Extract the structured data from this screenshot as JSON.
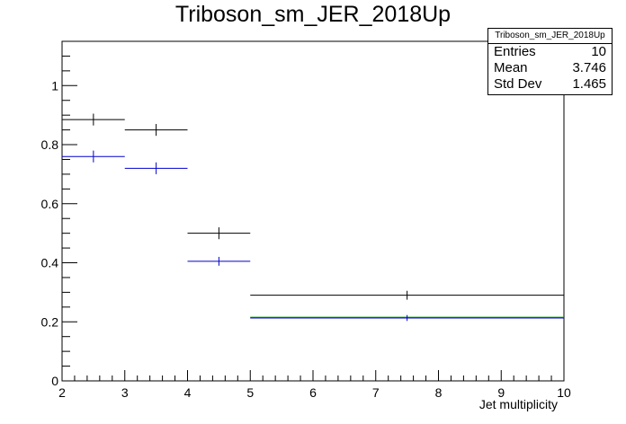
{
  "chart_data": {
    "type": "histogram",
    "title": "Triboson_sm_JER_2018Up",
    "xlabel": "Jet multiplicity",
    "ylabel": "",
    "xlim": [
      2,
      10
    ],
    "ylim": [
      0,
      1.15
    ],
    "xticks": [
      "2",
      "3",
      "4",
      "5",
      "6",
      "7",
      "8",
      "9",
      "10"
    ],
    "yticks": [
      "0",
      "0.2",
      "0.4",
      "0.6",
      "0.8",
      "1"
    ],
    "grid": false,
    "series": [
      {
        "color": "#000000",
        "bins": [
          {
            "x_low": 2,
            "x_high": 3,
            "x_center": 2.5,
            "value": 0.885,
            "err": 0.02
          },
          {
            "x_low": 3,
            "x_high": 4,
            "x_center": 3.5,
            "value": 0.85,
            "err": 0.02
          },
          {
            "x_low": 4,
            "x_high": 5,
            "x_center": 4.5,
            "value": 0.5,
            "err": 0.02
          },
          {
            "x_low": 5,
            "x_high": 10,
            "x_center": 7.5,
            "value": 0.29,
            "err": 0.015
          }
        ]
      },
      {
        "color": "#0000cc",
        "bins": [
          {
            "x_low": 2,
            "x_high": 3,
            "x_center": 2.5,
            "value": 0.76,
            "err": 0.02
          },
          {
            "x_low": 3,
            "x_high": 4,
            "x_center": 3.5,
            "value": 0.72,
            "err": 0.02
          },
          {
            "x_low": 4,
            "x_high": 5,
            "x_center": 4.5,
            "value": 0.405,
            "err": 0.015
          },
          {
            "x_low": 5,
            "x_high": 10,
            "x_center": 7.5,
            "value": 0.213,
            "err": 0.01
          }
        ]
      }
    ],
    "green_line": {
      "color": "#00aa00",
      "value": 0.215,
      "x_low": 5,
      "x_high": 10
    },
    "stats_box": {
      "title": "Triboson_sm_JER_2018Up",
      "rows": [
        {
          "label": "Entries",
          "value": "10"
        },
        {
          "label": "Mean",
          "value": "3.746"
        },
        {
          "label": "Std Dev",
          "value": "1.465"
        }
      ]
    }
  }
}
